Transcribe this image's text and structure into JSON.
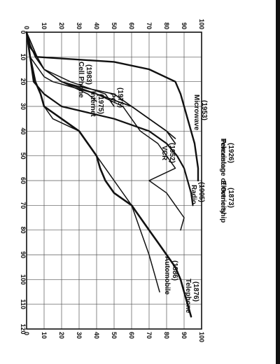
{
  "chart_data": {
    "type": "line",
    "orientation": "rotated-90-clockwise",
    "ylabel": "Percentage of Ownership",
    "xlim": [
      0,
      120
    ],
    "ylim": [
      0,
      100
    ],
    "x_ticks": [
      "0",
      "10",
      "20",
      "30",
      "40",
      "50",
      "60",
      "70",
      "80",
      "90",
      "100",
      "110",
      "120"
    ],
    "y_ticks": [
      "0",
      "10",
      "20",
      "30",
      "40",
      "50",
      "60",
      "70",
      "80",
      "90",
      "100"
    ],
    "grid": true,
    "series": [
      {
        "name": "Electricity",
        "year": "(1873)",
        "stroke": 2.2,
        "x": [
          0,
          10,
          20,
          25,
          30,
          35,
          40,
          45,
          50,
          55,
          60,
          65,
          70
        ],
        "y": [
          0,
          2,
          4,
          10,
          20,
          50,
          70,
          80,
          86,
          90,
          92,
          94,
          95
        ]
      },
      {
        "name": "Television",
        "year": "(1926)",
        "stroke": 2.4,
        "x": [
          0,
          6,
          8,
          10,
          12,
          15,
          20,
          25,
          30,
          35,
          40,
          45,
          50,
          55,
          60
        ],
        "y": [
          0,
          2,
          4,
          6,
          50,
          70,
          85,
          88,
          90,
          92,
          94,
          96,
          97,
          98,
          98
        ]
      },
      {
        "name": "Telephone",
        "year": "(1876)",
        "stroke": 2.6,
        "x": [
          0,
          10,
          20,
          25,
          30,
          35,
          40,
          45,
          50,
          55,
          60,
          65,
          70,
          75,
          80,
          85,
          90,
          95,
          100,
          105,
          110,
          115
        ],
        "y": [
          0,
          2,
          5,
          8,
          10,
          20,
          30,
          35,
          40,
          42,
          45,
          50,
          60,
          65,
          70,
          75,
          80,
          85,
          88,
          90,
          92,
          94
        ]
      },
      {
        "name": "Radio",
        "year": "(1905)",
        "stroke": 1.5,
        "x": [
          0,
          10,
          18,
          20,
          25,
          30,
          35,
          40,
          45,
          50,
          55,
          60,
          65,
          70,
          75,
          80
        ],
        "y": [
          0,
          2,
          10,
          15,
          40,
          55,
          60,
          65,
          75,
          80,
          85,
          70,
          80,
          85,
          90,
          88
        ]
      },
      {
        "name": "Automobile",
        "year": "(1886)",
        "stroke": 1.5,
        "x": [
          0,
          10,
          20,
          25,
          30,
          35,
          40,
          50,
          60,
          70,
          80,
          90,
          95,
          100,
          105
        ],
        "y": [
          0,
          2,
          5,
          8,
          10,
          15,
          30,
          40,
          50,
          60,
          65,
          70,
          72,
          74,
          76
        ]
      },
      {
        "name": "Microwave",
        "year": "(1953)",
        "stroke": 1.6,
        "x": [
          0,
          5,
          10,
          15,
          20,
          22,
          25,
          30,
          35,
          40,
          45
        ],
        "y": [
          0,
          2,
          5,
          10,
          20,
          30,
          50,
          60,
          70,
          80,
          85
        ]
      },
      {
        "name": "VCR",
        "year": "(1952)",
        "stroke": 1.6,
        "x": [
          0,
          5,
          10,
          15,
          20,
          25,
          30,
          35,
          40,
          43
        ],
        "y": [
          0,
          2,
          5,
          10,
          20,
          40,
          60,
          70,
          80,
          85
        ]
      },
      {
        "name": "PC",
        "year": "(1975)",
        "stroke": 1.5,
        "x": [
          0,
          5,
          10,
          15,
          20,
          25,
          30
        ],
        "y": [
          0,
          3,
          6,
          10,
          25,
          45,
          50
        ]
      },
      {
        "name": "Internet",
        "year": "(1975)",
        "stroke": 1.5,
        "x": [
          0,
          5,
          10,
          15,
          20,
          25,
          28
        ],
        "y": [
          0,
          3,
          6,
          10,
          20,
          35,
          40
        ]
      },
      {
        "name": "Cell Phone",
        "year": "(1983)",
        "stroke": 1.5,
        "x": [
          0,
          5,
          10,
          15,
          20,
          25,
          30,
          35
        ],
        "y": [
          0,
          2,
          5,
          10,
          20,
          40,
          60,
          70
        ]
      }
    ]
  }
}
